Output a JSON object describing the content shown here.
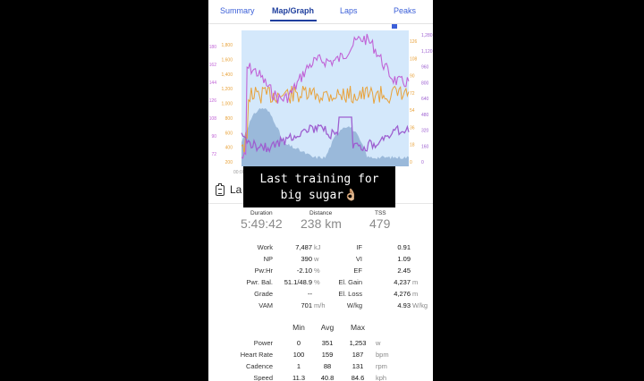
{
  "tabs": [
    {
      "label": "Summary",
      "active": false
    },
    {
      "label": "Map/Graph",
      "active": true
    },
    {
      "label": "Laps",
      "active": false
    },
    {
      "label": "Peaks",
      "active": false
    }
  ],
  "chart_data": {
    "type": "line",
    "left_axis_1": [
      "180",
      "162",
      "144",
      "126",
      "108",
      "90",
      "72"
    ],
    "left_axis_2": [
      "1,800",
      "1,600",
      "1,400",
      "1,200",
      "1,000",
      "800",
      "600",
      "400",
      "200"
    ],
    "right_axis_1": [
      "126",
      "108",
      "90",
      "72",
      "54",
      "36",
      "18",
      "0"
    ],
    "right_axis_2": [
      "1,280",
      "1,120",
      "960",
      "800",
      "640",
      "480",
      "320",
      "160",
      "0"
    ],
    "x_tick_first": "00:00",
    "colors": {
      "heart_rate": "#c062d6",
      "cadence": "#e8a23a",
      "power": "#9d5fd0",
      "elevation": "#8fb0d4",
      "background": "#d4e8fb"
    }
  },
  "overlay": {
    "text": "Last training for\nbig sugar👌🏼"
  },
  "laps": {
    "title": "La"
  },
  "summary": [
    {
      "label": "Duration",
      "value": "5:49:42"
    },
    {
      "label": "Distance",
      "value": "238 km"
    },
    {
      "label": "TSS",
      "value": "479"
    }
  ],
  "stats_left": [
    {
      "label": "Work",
      "value": "7,487",
      "unit": "kJ"
    },
    {
      "label": "NP",
      "value": "390",
      "unit": "w"
    },
    {
      "label": "Pw:Hr",
      "value": "-2.10",
      "unit": "%"
    },
    {
      "label": "Pwr. Bal.",
      "value": "51.1/48.9",
      "unit": "%"
    },
    {
      "label": "Grade",
      "value": "--",
      "unit": ""
    },
    {
      "label": "VAM",
      "value": "701",
      "unit": "m/h"
    }
  ],
  "stats_right": [
    {
      "label": "IF",
      "value": "0.91",
      "unit": ""
    },
    {
      "label": "VI",
      "value": "1.09",
      "unit": ""
    },
    {
      "label": "EF",
      "value": "2.45",
      "unit": ""
    },
    {
      "label": "El. Gain",
      "value": "4,237",
      "unit": "m"
    },
    {
      "label": "El. Loss",
      "value": "4,276",
      "unit": "m"
    },
    {
      "label": "W/kg",
      "value": "4.93",
      "unit": "W/kg"
    }
  ],
  "table": {
    "headers": [
      "Min",
      "Avg",
      "Max"
    ],
    "rows": [
      {
        "label": "Power",
        "min": "0",
        "avg": "351",
        "max": "1,253",
        "unit": "w"
      },
      {
        "label": "Heart Rate",
        "min": "100",
        "avg": "159",
        "max": "187",
        "unit": "bpm"
      },
      {
        "label": "Cadence",
        "min": "1",
        "avg": "88",
        "max": "131",
        "unit": "rpm"
      },
      {
        "label": "Speed",
        "min": "11.3",
        "avg": "40.8",
        "max": "84.6",
        "unit": "kph"
      }
    ]
  }
}
